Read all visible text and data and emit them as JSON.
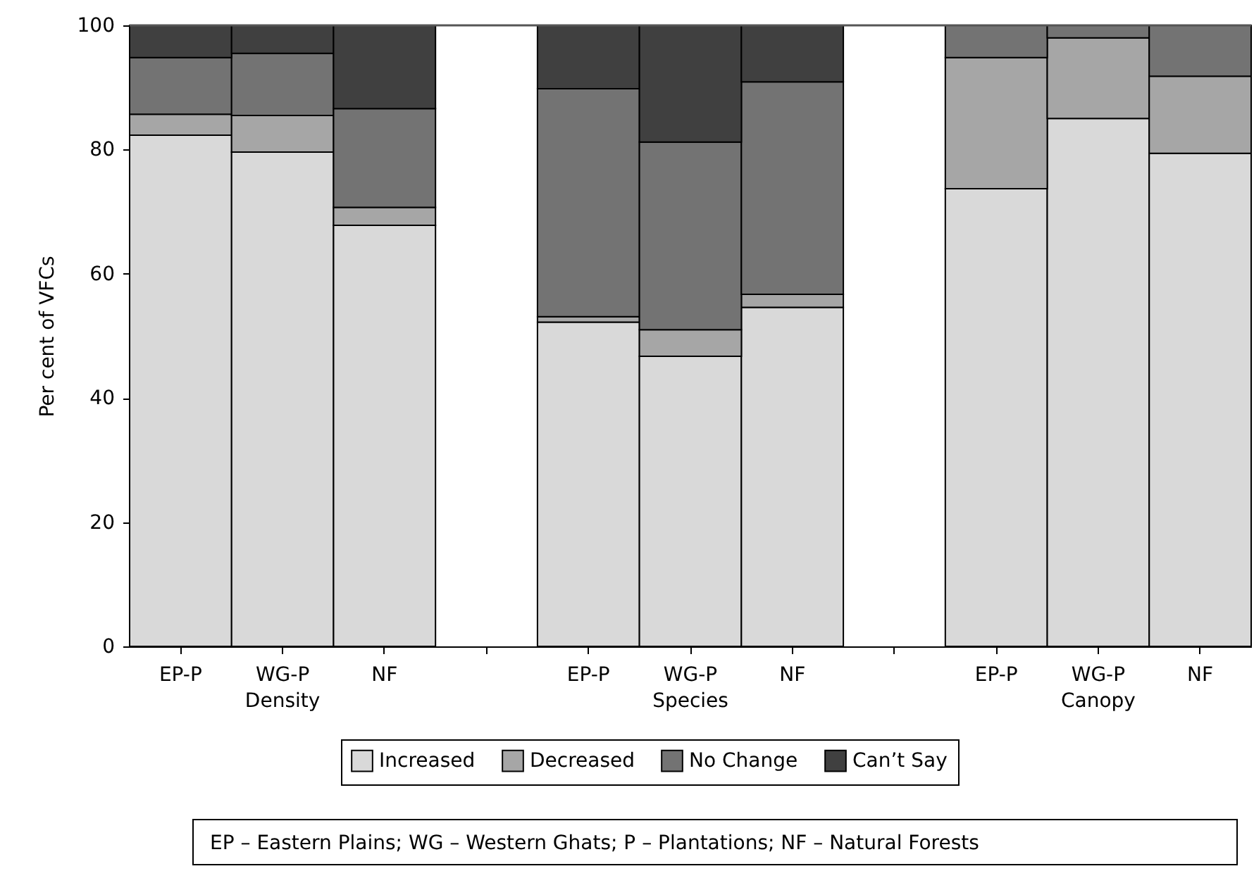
{
  "chart_data": {
    "type": "bar",
    "stacked": true,
    "ylabel": "Per cent of VFCs",
    "ylim": [
      0,
      100
    ],
    "yticks": [
      0,
      20,
      40,
      60,
      80,
      100
    ],
    "grid": false,
    "legend": "bottom",
    "categories": [
      "EP-P",
      "WG-P",
      "NF",
      null,
      "EP-P",
      "WG-P",
      "NF",
      null,
      "EP-P",
      "WG-P",
      "NF"
    ],
    "series": [
      {
        "name": "Increased",
        "color": "#d9d9d9",
        "values": [
          82.3,
          79.6,
          67.8,
          null,
          52.2,
          46.7,
          54.6,
          null,
          73.7,
          85.0,
          79.4
        ]
      },
      {
        "name": "Decreased",
        "color": "#a6a6a6",
        "values": [
          3.4,
          5.9,
          2.9,
          null,
          0.9,
          4.3,
          2.1,
          null,
          21.1,
          13.0,
          12.4
        ]
      },
      {
        "name": "No Change",
        "color": "#737373",
        "values": [
          9.1,
          10.0,
          15.9,
          null,
          36.7,
          30.2,
          34.2,
          null,
          5.2,
          2.0,
          8.2
        ]
      },
      {
        "name": "Can’t Say",
        "color": "#404040",
        "values": [
          5.2,
          4.5,
          13.4,
          null,
          10.2,
          18.8,
          9.1,
          null,
          null,
          null,
          null
        ]
      }
    ],
    "annotations": [
      "Density",
      "Species",
      "Canopy",
      "EP – Eastern Plains; WG – Western Ghats; P – Plantations; NF – Natural Forests"
    ]
  }
}
